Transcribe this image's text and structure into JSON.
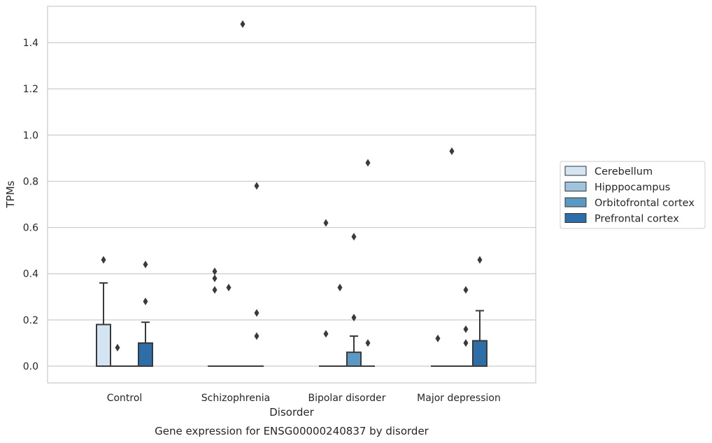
{
  "chart_data": {
    "type": "box",
    "title": "Gene expression for ENSG00000240837 by disorder",
    "xlabel": "Disorder",
    "ylabel": "TPMs",
    "ylim": [
      -0.07,
      1.56
    ],
    "y_ticks": [
      "0.0",
      "0.2",
      "0.4",
      "0.6",
      "0.8",
      "1.0",
      "1.2",
      "1.4"
    ],
    "y_tick_values": [
      0.0,
      0.2,
      0.4,
      0.6,
      0.8,
      1.0,
      1.2,
      1.4
    ],
    "categories": [
      "Control",
      "Schizophrenia",
      "Bipolar disorder",
      "Major depression"
    ],
    "grid": "horizontal",
    "legend_position": "right",
    "series": [
      {
        "name": "Cerebellum",
        "color": "#d5e4f2",
        "boxes": [
          {
            "q1": 0.0,
            "median": 0.0,
            "q3": 0.18,
            "whisker_low": 0.0,
            "whisker_high": 0.36,
            "outliers": [
              0.46
            ]
          },
          {
            "q1": 0.0,
            "median": 0.0,
            "q3": 0.0,
            "whisker_low": 0.0,
            "whisker_high": 0.0,
            "outliers": [
              0.33,
              0.38,
              0.41
            ]
          },
          {
            "q1": 0.0,
            "median": 0.0,
            "q3": 0.0,
            "whisker_low": 0.0,
            "whisker_high": 0.0,
            "outliers": [
              0.14,
              0.62
            ]
          },
          {
            "q1": 0.0,
            "median": 0.0,
            "q3": 0.0,
            "whisker_low": 0.0,
            "whisker_high": 0.0,
            "outliers": [
              0.12
            ]
          }
        ]
      },
      {
        "name": "Hipppocampus",
        "color": "#9dc3de",
        "boxes": [
          {
            "q1": 0.0,
            "median": 0.0,
            "q3": 0.0,
            "whisker_low": 0.0,
            "whisker_high": 0.0,
            "outliers": [
              0.08
            ]
          },
          {
            "q1": 0.0,
            "median": 0.0,
            "q3": 0.0,
            "whisker_low": 0.0,
            "whisker_high": 0.0,
            "outliers": [
              0.34
            ]
          },
          {
            "q1": 0.0,
            "median": 0.0,
            "q3": 0.0,
            "whisker_low": 0.0,
            "whisker_high": 0.0,
            "outliers": [
              0.34
            ]
          },
          {
            "q1": 0.0,
            "median": 0.0,
            "q3": 0.0,
            "whisker_low": 0.0,
            "whisker_high": 0.0,
            "outliers": [
              0.93
            ]
          }
        ]
      },
      {
        "name": "Orbitofrontal cortex",
        "color": "#5b99c4",
        "boxes": [
          {
            "q1": 0.0,
            "median": 0.0,
            "q3": 0.0,
            "whisker_low": 0.0,
            "whisker_high": 0.0,
            "outliers": []
          },
          {
            "q1": 0.0,
            "median": 0.0,
            "q3": 0.0,
            "whisker_low": 0.0,
            "whisker_high": 0.0,
            "outliers": [
              1.48
            ]
          },
          {
            "q1": 0.0,
            "median": 0.0,
            "q3": 0.06,
            "whisker_low": 0.0,
            "whisker_high": 0.13,
            "outliers": [
              0.21,
              0.56
            ]
          },
          {
            "q1": 0.0,
            "median": 0.0,
            "q3": 0.0,
            "whisker_low": 0.0,
            "whisker_high": 0.0,
            "outliers": [
              0.1,
              0.16,
              0.33
            ]
          }
        ]
      },
      {
        "name": "Prefrontal cortex",
        "color": "#2d6da8",
        "boxes": [
          {
            "q1": 0.0,
            "median": 0.0,
            "q3": 0.1,
            "whisker_low": 0.0,
            "whisker_high": 0.19,
            "outliers": [
              0.28,
              0.44
            ]
          },
          {
            "q1": 0.0,
            "median": 0.0,
            "q3": 0.0,
            "whisker_low": 0.0,
            "whisker_high": 0.0,
            "outliers": [
              0.13,
              0.23,
              0.78
            ]
          },
          {
            "q1": 0.0,
            "median": 0.0,
            "q3": 0.0,
            "whisker_low": 0.0,
            "whisker_high": 0.0,
            "outliers": [
              0.1,
              0.88
            ]
          },
          {
            "q1": 0.0,
            "median": 0.0,
            "q3": 0.11,
            "whisker_low": 0.0,
            "whisker_high": 0.24,
            "outliers": [
              0.46
            ]
          }
        ]
      }
    ]
  }
}
